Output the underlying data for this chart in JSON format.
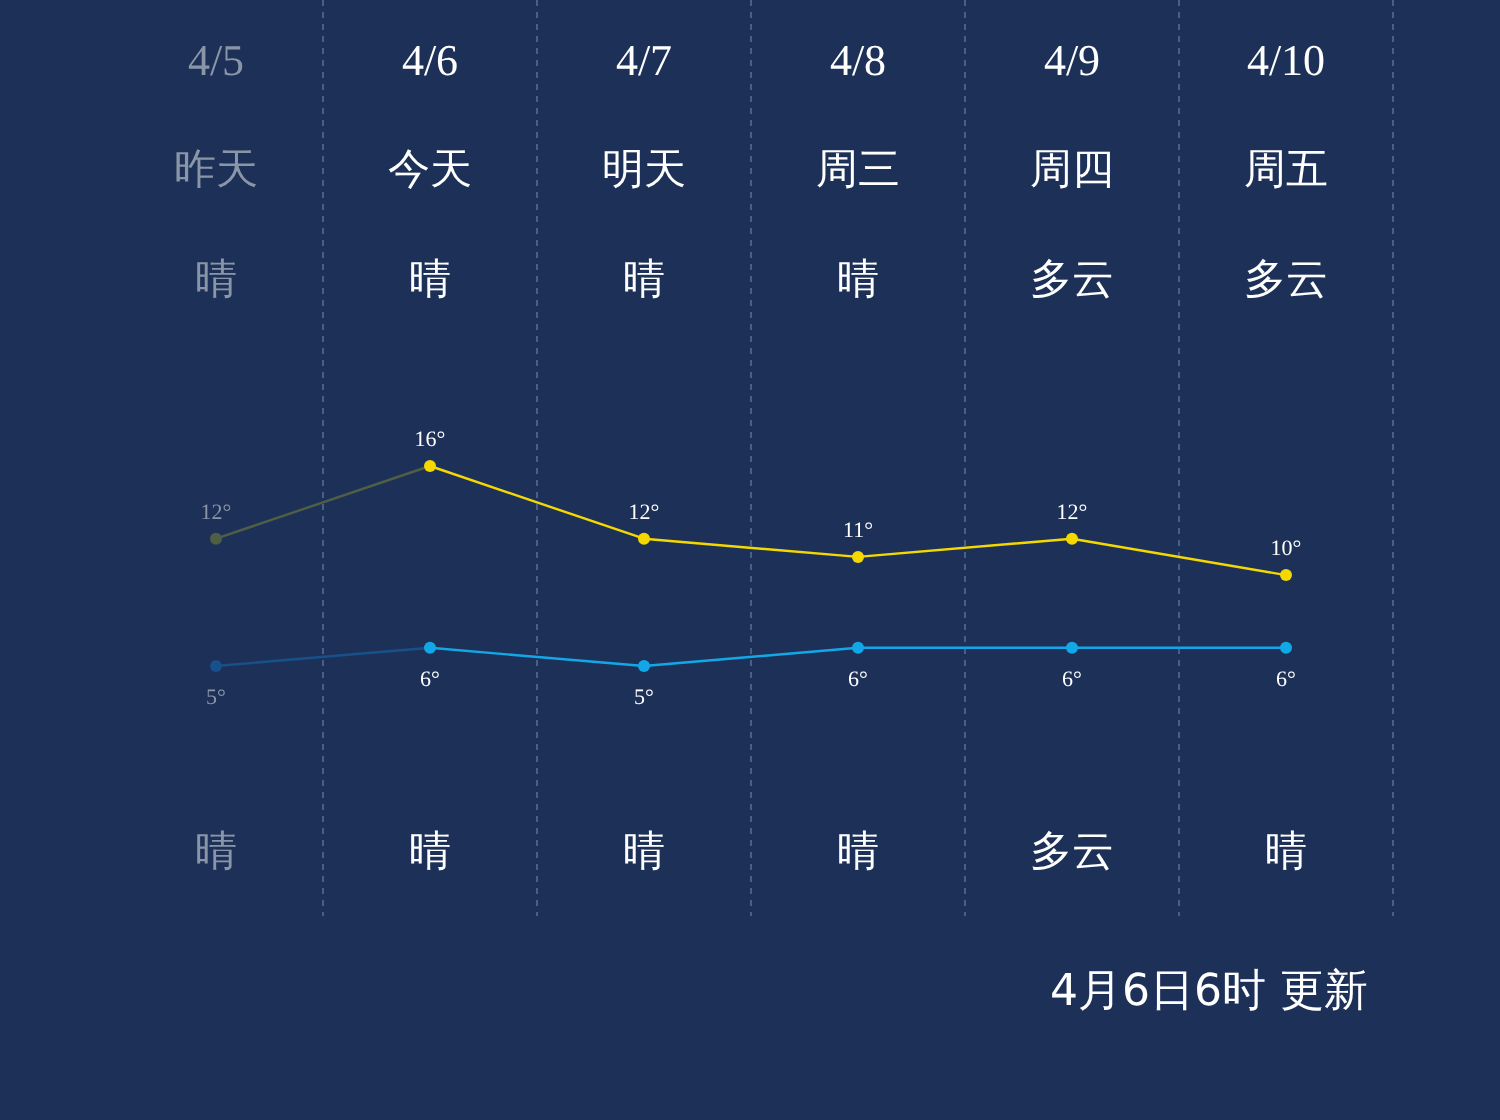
{
  "chart_data": {
    "type": "line",
    "categories": [
      "4/5",
      "4/6",
      "4/7",
      "4/8",
      "4/9",
      "4/10"
    ],
    "series": [
      {
        "color": "#f5d800",
        "colors": [
          "#4f5f45",
          null,
          null,
          null,
          null,
          null
        ],
        "values": [
          12,
          16,
          12,
          11,
          12,
          10
        ],
        "value_labels": [
          "12°",
          "16°",
          "12°",
          "11°",
          "12°",
          "10°"
        ]
      },
      {
        "color": "#12a8e8",
        "colors": [
          "#17508a",
          null,
          null,
          null,
          null,
          null
        ],
        "values": [
          5,
          6,
          5,
          6,
          6,
          6
        ],
        "value_labels": [
          "5°",
          "6°",
          "5°",
          "6°",
          "6°",
          "6°"
        ]
      }
    ],
    "tick_labels": "x",
    "grid": "x",
    "marker": "circle",
    "line_style": "solid",
    "annotations": [
      "昨天",
      "今天",
      "明天",
      "周三",
      "周四",
      "周五",
      "晴",
      "晴",
      "晴",
      "晴",
      "多云",
      "多云",
      "晴",
      "晴",
      "晴",
      "晴",
      "多云",
      "晴",
      "4月6日6时 更新"
    ]
  }
}
